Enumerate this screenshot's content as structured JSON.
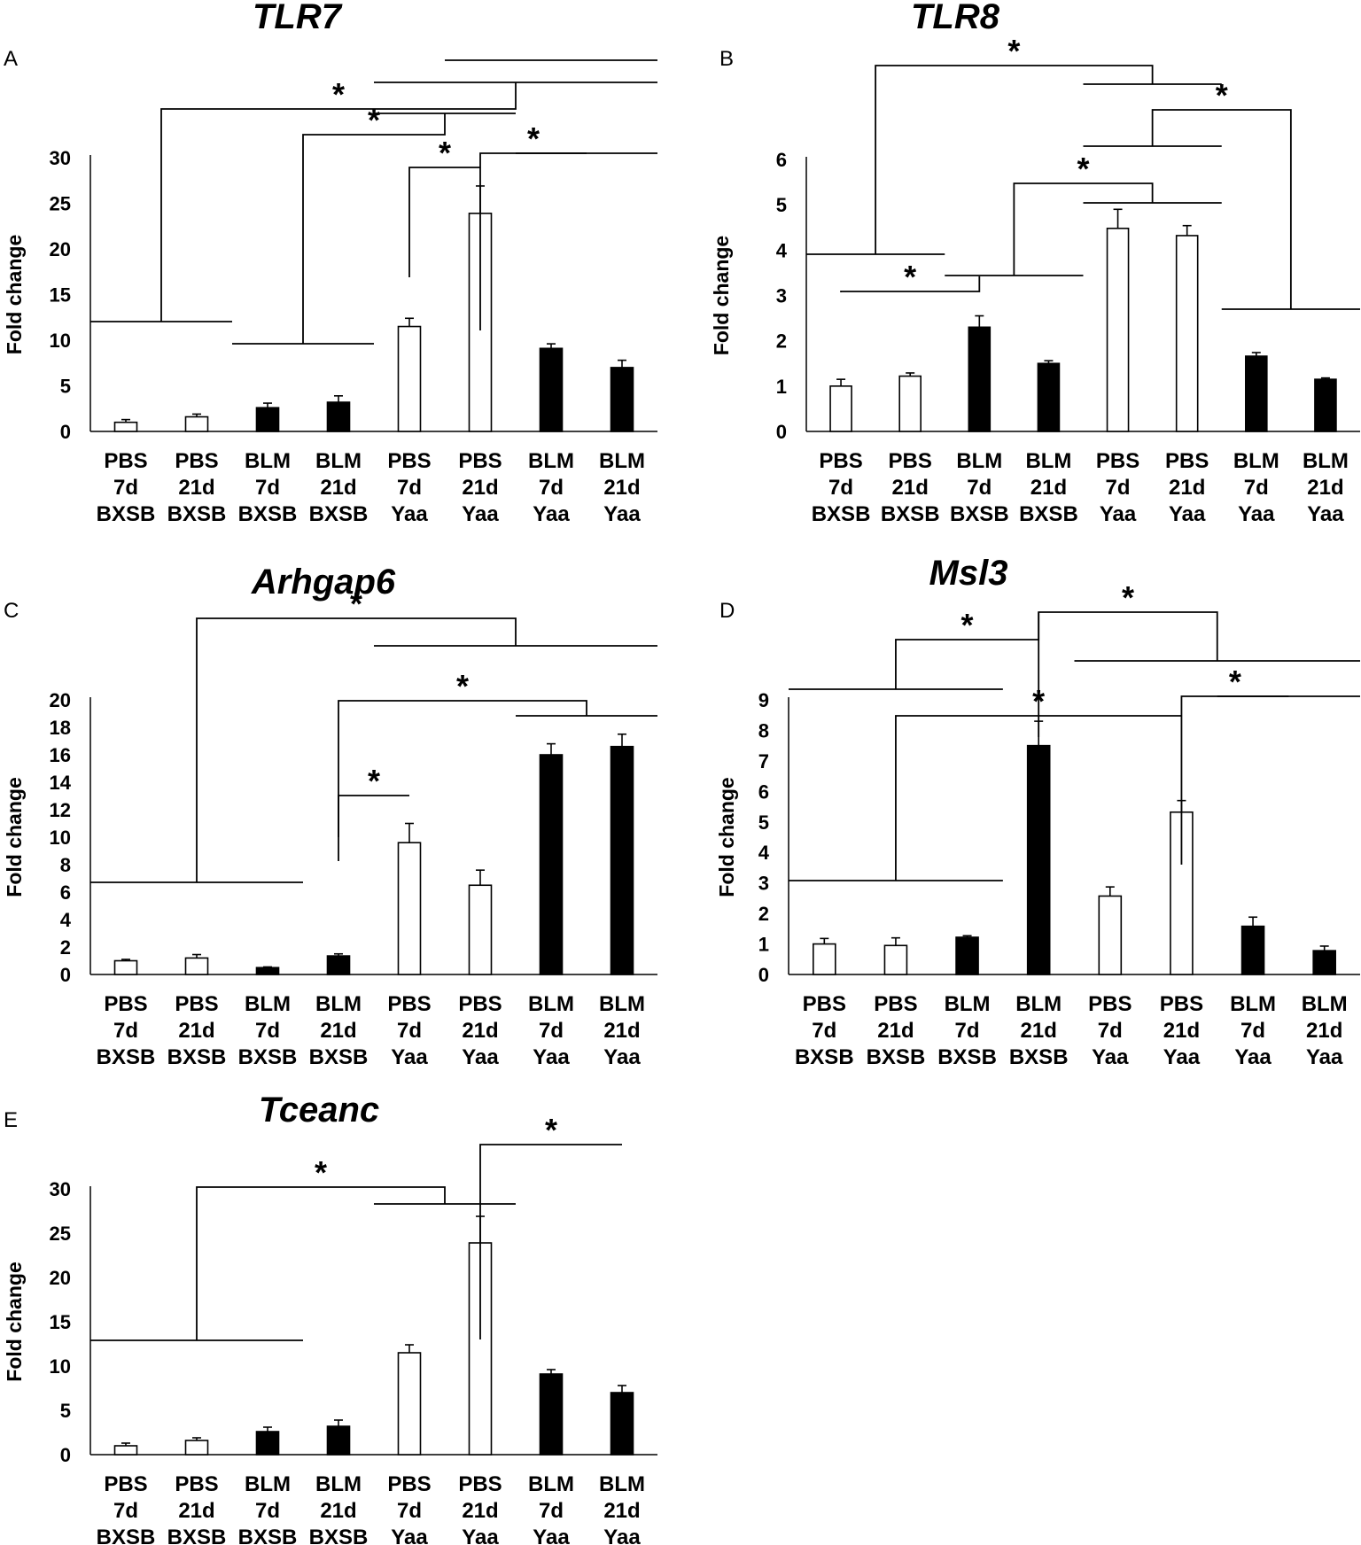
{
  "figure": {
    "panels": [
      "A",
      "B",
      "C",
      "D",
      "E"
    ]
  },
  "chart_data": [
    {
      "panel": "A",
      "type": "bar",
      "title": "TLR7",
      "ylabel": "Fold change",
      "xlabel": "",
      "ylim": [
        0,
        30
      ],
      "yticks": [
        0,
        5,
        10,
        15,
        20,
        25,
        30
      ],
      "categories": [
        [
          "PBS",
          "7d",
          "BXSB"
        ],
        [
          "PBS",
          "21d",
          "BXSB"
        ],
        [
          "BLM",
          "7d",
          "BXSB"
        ],
        [
          "BLM",
          "21d",
          "BXSB"
        ],
        [
          "PBS",
          "7d",
          "Yaa"
        ],
        [
          "PBS",
          "21d",
          "Yaa"
        ],
        [
          "BLM",
          "7d",
          "Yaa"
        ],
        [
          "BLM",
          "21d",
          "Yaa"
        ]
      ],
      "bar_fill": [
        "white",
        "white",
        "black",
        "black",
        "white",
        "white",
        "black",
        "black"
      ],
      "values": [
        1.0,
        1.6,
        2.6,
        3.2,
        11.5,
        23.9,
        9.1,
        7.0
      ],
      "errors": [
        0.3,
        0.3,
        0.5,
        0.7,
        0.9,
        3.0,
        0.5,
        0.8
      ],
      "significance": [
        {
          "label": "*",
          "left": [
            0,
            1
          ],
          "right": [
            4,
            7
          ],
          "right_sub": [
            5,
            7
          ]
        },
        {
          "label": "*",
          "left": [
            2,
            3
          ],
          "right": [
            4,
            5
          ]
        },
        {
          "label": "*",
          "left": [
            4
          ],
          "right": [
            5
          ]
        },
        {
          "label": "*",
          "left": [
            5
          ],
          "right": [
            6,
            7
          ]
        }
      ]
    },
    {
      "panel": "B",
      "type": "bar",
      "title": "TLR8",
      "ylabel": "Fold change",
      "xlabel": "",
      "ylim": [
        0,
        6
      ],
      "yticks": [
        0,
        1,
        2,
        3,
        4,
        5,
        6
      ],
      "categories": [
        [
          "PBS",
          "7d",
          "BXSB"
        ],
        [
          "PBS",
          "21d",
          "BXSB"
        ],
        [
          "BLM",
          "7d",
          "BXSB"
        ],
        [
          "BLM",
          "21d",
          "BXSB"
        ],
        [
          "PBS",
          "7d",
          "Yaa"
        ],
        [
          "PBS",
          "21d",
          "Yaa"
        ],
        [
          "BLM",
          "7d",
          "Yaa"
        ],
        [
          "BLM",
          "21d",
          "Yaa"
        ]
      ],
      "bar_fill": [
        "white",
        "white",
        "black",
        "black",
        "white",
        "white",
        "black",
        "black"
      ],
      "values": [
        1.0,
        1.22,
        2.3,
        1.5,
        4.48,
        4.32,
        1.66,
        1.15
      ],
      "errors": [
        0.15,
        0.07,
        0.25,
        0.06,
        0.42,
        0.22,
        0.08,
        0.03
      ],
      "significance": [
        {
          "label": "*",
          "left": [
            0,
            1
          ],
          "right": [
            4,
            5
          ]
        },
        {
          "label": "*",
          "left": [
            4,
            5
          ],
          "right": [
            6,
            7
          ]
        },
        {
          "label": "*",
          "left": [
            2,
            3
          ],
          "right": [
            4,
            5
          ]
        },
        {
          "label": "*",
          "left": [
            0
          ],
          "right": [
            2
          ]
        }
      ]
    },
    {
      "panel": "C",
      "type": "bar",
      "title": "Arhgap6",
      "ylabel": "Fold change",
      "xlabel": "",
      "ylim": [
        0,
        20
      ],
      "yticks": [
        0,
        2,
        4,
        6,
        8,
        10,
        12,
        14,
        16,
        18,
        20
      ],
      "categories": [
        [
          "PBS",
          "7d",
          "BXSB"
        ],
        [
          "PBS",
          "21d",
          "BXSB"
        ],
        [
          "BLM",
          "7d",
          "BXSB"
        ],
        [
          "BLM",
          "21d",
          "BXSB"
        ],
        [
          "PBS",
          "7d",
          "Yaa"
        ],
        [
          "PBS",
          "21d",
          "Yaa"
        ],
        [
          "BLM",
          "7d",
          "Yaa"
        ],
        [
          "BLM",
          "21d",
          "Yaa"
        ]
      ],
      "bar_fill": [
        "white",
        "white",
        "black",
        "black",
        "white",
        "white",
        "black",
        "black"
      ],
      "values": [
        1.0,
        1.2,
        0.5,
        1.35,
        9.6,
        6.5,
        16.0,
        16.6
      ],
      "errors": [
        0.1,
        0.25,
        0.05,
        0.15,
        1.4,
        1.1,
        0.8,
        0.9
      ],
      "significance": [
        {
          "label": "*",
          "left": [
            0,
            1,
            2
          ],
          "right": [
            4,
            7
          ]
        },
        {
          "label": "*",
          "left": [
            3
          ],
          "right": [
            6,
            7
          ]
        },
        {
          "label": "*",
          "left": [
            3
          ],
          "right": [
            4
          ]
        }
      ]
    },
    {
      "panel": "D",
      "type": "bar",
      "title": "Msl3",
      "ylabel": "Fold change",
      "xlabel": "",
      "ylim": [
        0,
        9
      ],
      "yticks": [
        0,
        1,
        2,
        3,
        4,
        5,
        6,
        7,
        8,
        9
      ],
      "categories": [
        [
          "PBS",
          "7d",
          "BXSB"
        ],
        [
          "PBS",
          "21d",
          "BXSB"
        ],
        [
          "BLM",
          "7d",
          "BXSB"
        ],
        [
          "BLM",
          "21d",
          "BXSB"
        ],
        [
          "PBS",
          "7d",
          "Yaa"
        ],
        [
          "PBS",
          "21d",
          "Yaa"
        ],
        [
          "BLM",
          "7d",
          "Yaa"
        ],
        [
          "BLM",
          "21d",
          "Yaa"
        ]
      ],
      "bar_fill": [
        "white",
        "white",
        "black",
        "black",
        "white",
        "white",
        "black",
        "black"
      ],
      "values": [
        1.0,
        0.95,
        1.22,
        7.5,
        2.57,
        5.32,
        1.58,
        0.78
      ],
      "errors": [
        0.18,
        0.25,
        0.05,
        0.8,
        0.3,
        0.38,
        0.3,
        0.15
      ],
      "significance": [
        {
          "label": "*",
          "left": [
            0,
            2
          ],
          "right": [
            3
          ]
        },
        {
          "label": "*",
          "left": [
            3
          ],
          "right": [
            4,
            7
          ]
        },
        {
          "label": "*",
          "left": [
            0,
            2
          ],
          "right": [
            5
          ]
        },
        {
          "label": "*",
          "left": [
            5
          ],
          "right": [
            6,
            7
          ]
        }
      ]
    },
    {
      "panel": "E",
      "type": "bar",
      "title": "Tceanc",
      "ylabel": "Fold change",
      "xlabel": "",
      "ylim": [
        0,
        30
      ],
      "yticks": [
        0,
        5,
        10,
        15,
        20,
        25,
        30
      ],
      "categories": [
        [
          "PBS",
          "7d",
          "BXSB"
        ],
        [
          "PBS",
          "21d",
          "BXSB"
        ],
        [
          "BLM",
          "7d",
          "BXSB"
        ],
        [
          "BLM",
          "21d",
          "BXSB"
        ],
        [
          "PBS",
          "7d",
          "Yaa"
        ],
        [
          "PBS",
          "21d",
          "Yaa"
        ],
        [
          "BLM",
          "7d",
          "Yaa"
        ],
        [
          "BLM",
          "21d",
          "Yaa"
        ]
      ],
      "bar_fill": [
        "white",
        "white",
        "black",
        "black",
        "white",
        "white",
        "black",
        "black"
      ],
      "values": [
        1.0,
        1.6,
        2.6,
        3.2,
        11.5,
        23.9,
        9.1,
        7.0
      ],
      "errors": [
        0.3,
        0.3,
        0.5,
        0.7,
        0.9,
        3.0,
        0.5,
        0.8
      ],
      "significance": [
        {
          "label": "*",
          "left": [
            0,
            2
          ],
          "right": [
            4,
            5
          ]
        },
        {
          "label": "*",
          "left": [
            5
          ],
          "right": [
            7
          ]
        }
      ]
    }
  ]
}
